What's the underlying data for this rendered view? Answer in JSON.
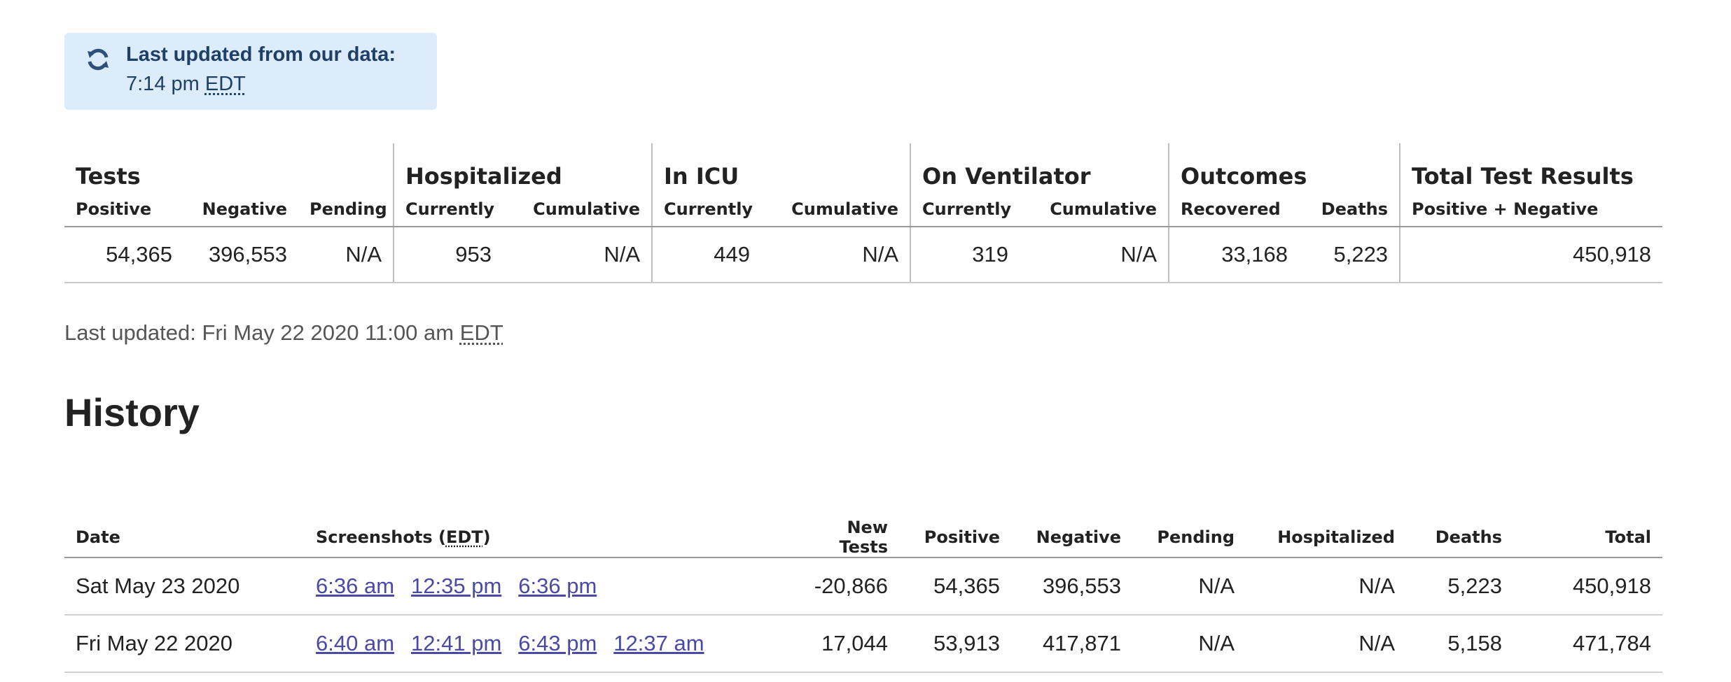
{
  "notice": {
    "title": "Last updated from our data:",
    "time": "7:14 pm",
    "tz": "EDT",
    "icon": "refresh-icon"
  },
  "summary": {
    "groups": [
      "Tests",
      "Hospitalized",
      "In ICU",
      "On Ventilator",
      "Outcomes",
      "Total Test Results"
    ],
    "subheaders": [
      "Positive",
      "Negative",
      "Pending",
      "Currently",
      "Cumulative",
      "Currently",
      "Cumulative",
      "Currently",
      "Cumulative",
      "Recovered",
      "Deaths",
      "Positive + Negative"
    ],
    "values": [
      "54,365",
      "396,553",
      "N/A",
      "953",
      "N/A",
      "449",
      "N/A",
      "319",
      "N/A",
      "33,168",
      "5,223",
      "450,918"
    ]
  },
  "last_updated": {
    "prefix": "Last updated: Fri May 22 2020 11:00 am",
    "tz": "EDT"
  },
  "history": {
    "title": "History",
    "headers": {
      "date": "Date",
      "screenshots": "Screenshots (",
      "screenshots_tz": "EDT",
      "screenshots_close": ")",
      "new_tests": "New Tests",
      "positive": "Positive",
      "negative": "Negative",
      "pending": "Pending",
      "hospitalized": "Hospitalized",
      "deaths": "Deaths",
      "total": "Total"
    },
    "rows": [
      {
        "date": "Sat May 23 2020",
        "screenshots": [
          "6:36 am",
          "12:35 pm",
          "6:36 pm"
        ],
        "new_tests": "-20,866",
        "positive": "54,365",
        "negative": "396,553",
        "pending": "N/A",
        "hospitalized": "N/A",
        "deaths": "5,223",
        "total": "450,918"
      },
      {
        "date": "Fri May 22 2020",
        "screenshots": [
          "6:40 am",
          "12:41 pm",
          "6:43 pm",
          "12:37 am"
        ],
        "new_tests": "17,044",
        "positive": "53,913",
        "negative": "417,871",
        "pending": "N/A",
        "hospitalized": "N/A",
        "deaths": "5,158",
        "total": "471,784"
      }
    ]
  },
  "colors": {
    "notice_bg": "#dcecfb",
    "notice_text": "#1f3f66",
    "link": "#4a4aa6"
  }
}
